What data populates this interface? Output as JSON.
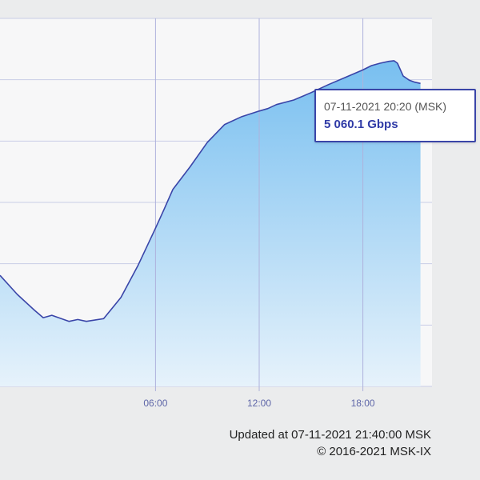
{
  "chart_data": {
    "type": "area",
    "title": "",
    "xlabel": "",
    "ylabel": "",
    "x_unit": "hour of day",
    "x_ticks": [
      {
        "value": 6,
        "label": "06:00"
      },
      {
        "value": 12,
        "label": "12:00"
      },
      {
        "value": 18,
        "label": "18:00"
      }
    ],
    "xlim": [
      -3.0,
      22.0
    ],
    "ylim": [
      0,
      6000
    ],
    "y_gridlines": [
      0,
      1000,
      2000,
      3000,
      4000,
      5000,
      6000
    ],
    "grid": true,
    "legend": "none",
    "series": [
      {
        "color": "#3a45a8",
        "fill_top": "#78bff0",
        "fill_bottom": "#e6f2fb",
        "x": [
          -3.0,
          -2.0,
          -1.0,
          -0.5,
          0.0,
          1.0,
          1.5,
          2.0,
          3.0,
          4.0,
          5.0,
          5.5,
          6.0,
          6.5,
          7.0,
          8.0,
          9.0,
          10.0,
          11.0,
          12.0,
          12.5,
          13.0,
          14.0,
          15.0,
          16.0,
          17.0,
          18.0,
          18.5,
          19.0,
          19.5,
          19.8,
          20.0,
          20.333,
          20.7,
          21.0,
          21.333
        ],
        "values": [
          1810,
          1500,
          1240,
          1120,
          1160,
          1060,
          1090,
          1060,
          1105,
          1450,
          1980,
          2280,
          2580,
          2890,
          3210,
          3580,
          3980,
          4270,
          4400,
          4490,
          4530,
          4595,
          4670,
          4790,
          4920,
          5040,
          5160,
          5230,
          5270,
          5300,
          5310,
          5270,
          5060,
          4990,
          4960,
          4940
        ]
      }
    ],
    "tooltip": {
      "x": 20.333,
      "date": "07-11-2021 20:20 (MSK)",
      "value_label": "5 060.1 Gbps",
      "value": 5060.1
    }
  },
  "footer": {
    "updated": "Updated at 07-11-2021 21:40:00 MSK",
    "copyright": "© 2016-2021 MSK-IX"
  }
}
